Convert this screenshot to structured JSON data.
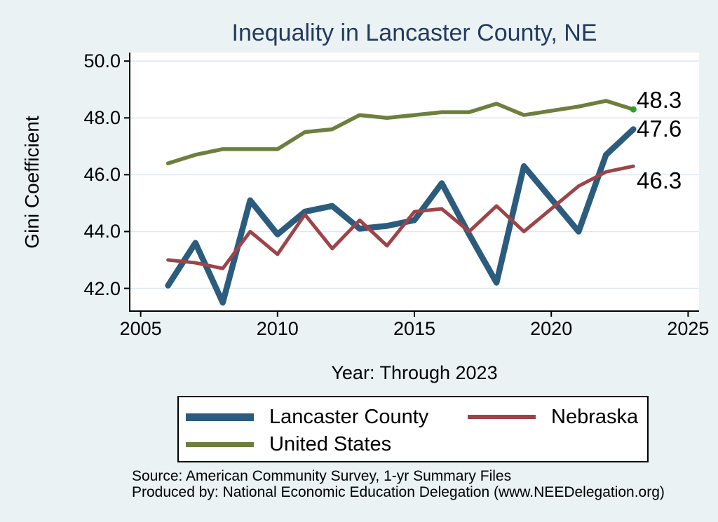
{
  "chart_data": {
    "type": "line",
    "title": "Inequality in Lancaster County, NE",
    "xlabel": "Year: Through 2023",
    "ylabel": "Gini Coefficient",
    "x": [
      2006,
      2007,
      2008,
      2009,
      2010,
      2011,
      2012,
      2013,
      2014,
      2015,
      2016,
      2017,
      2018,
      2019,
      2021,
      2022,
      2023
    ],
    "series": [
      {
        "name": "Lancaster County",
        "color": "#2b5c7d",
        "line_width": 8.5,
        "end_label": "47.6",
        "values": [
          42.1,
          43.6,
          41.5,
          45.1,
          43.9,
          44.7,
          44.9,
          44.1,
          44.2,
          44.4,
          45.7,
          43.9,
          42.2,
          46.3,
          44.0,
          46.7,
          47.6
        ]
      },
      {
        "name": "Nebraska",
        "color": "#9e4449",
        "line_width": 5,
        "end_label": "46.3",
        "values": [
          43.0,
          42.9,
          42.7,
          44.0,
          43.2,
          44.6,
          43.4,
          44.4,
          43.5,
          44.7,
          44.8,
          44.0,
          44.9,
          44.0,
          45.6,
          46.1,
          46.3
        ]
      },
      {
        "name": "United States",
        "color": "#6d7f3e",
        "line_width": 5.5,
        "end_label": "48.3",
        "end_marker_color": "#2aa12e",
        "values": [
          46.4,
          46.7,
          46.9,
          46.9,
          46.9,
          47.5,
          47.6,
          48.1,
          48.0,
          48.1,
          48.2,
          48.2,
          48.5,
          48.1,
          48.4,
          48.6,
          48.3
        ]
      }
    ],
    "xlim": [
      2004.6,
      2025.4
    ],
    "ylim": [
      41.2,
      50.3
    ],
    "x_ticks": [
      2005,
      2010,
      2015,
      2020,
      2025
    ],
    "x_tick_labels": [
      "2005",
      "2010",
      "2015",
      "2020",
      "2025"
    ],
    "y_ticks": [
      50,
      48,
      46,
      44,
      42
    ],
    "y_tick_labels": [
      "50.0",
      "48.0",
      "46.0",
      "44.0",
      "42.0"
    ],
    "grid": true,
    "legend_position": "bottom"
  },
  "legend": {
    "items": [
      {
        "label": "Lancaster County",
        "color": "#2b5c7d",
        "thickness": 11
      },
      {
        "label": "Nebraska",
        "color": "#9e4449",
        "thickness": 6
      },
      {
        "label": "United States",
        "color": "#6d7f3e",
        "thickness": 7
      }
    ]
  },
  "footer": {
    "source": "Source: American Community Survey, 1-yr Summary Files",
    "produced_by": "Produced by: National Economic Education Delegation (www.NEEDelegation.org)"
  },
  "colors": {
    "background": "#eaf2f3",
    "plot_background": "#ffffff",
    "gridline": "#dce8f0",
    "axis": "#000000",
    "title_text": "#223a5e",
    "label_text": "#000000"
  }
}
